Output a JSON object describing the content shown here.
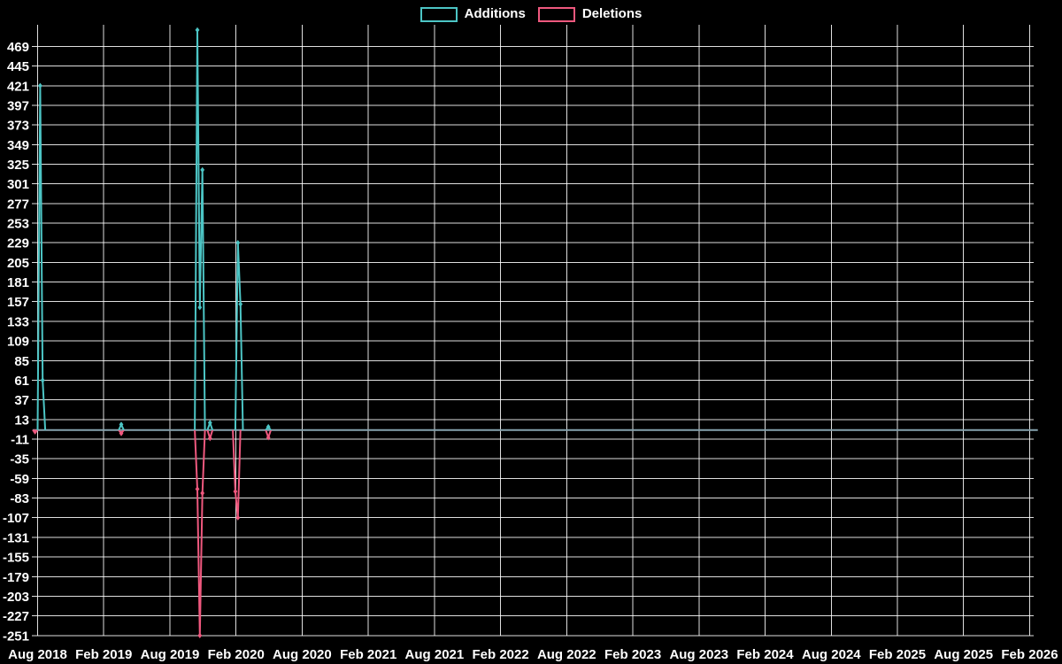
{
  "legend": {
    "items": [
      {
        "label": "Additions",
        "color": "#4cc5c5"
      },
      {
        "label": "Deletions",
        "color": "#ef587e"
      }
    ]
  },
  "chart_data": {
    "type": "line",
    "title": "",
    "xlabel": "",
    "ylabel": "",
    "legend_position": "top",
    "grid": "on",
    "background_color": "#000000",
    "grid_color": "rgba(255,255,255,0.87)",
    "tick_text_color": "#ffffff",
    "baseline_color": "#86a3ae",
    "x_ticks": [
      "Aug 2018",
      "Feb 2019",
      "Aug 2019",
      "Feb 2020",
      "Aug 2020",
      "Feb 2021",
      "Aug 2021",
      "Feb 2022",
      "Aug 2022",
      "Feb 2023",
      "Aug 2023",
      "Feb 2024",
      "Aug 2024",
      "Feb 2025",
      "Aug 2025",
      "Feb 2026"
    ],
    "y_ticks": [
      469,
      445,
      421,
      397,
      373,
      349,
      325,
      301,
      277,
      253,
      229,
      205,
      181,
      157,
      133,
      109,
      85,
      61,
      37,
      13,
      -11,
      -35,
      -59,
      -83,
      -107,
      -131,
      -155,
      -179,
      -203,
      -227,
      -251
    ],
    "ylim": [
      -251,
      469
    ],
    "x_domain": [
      "2018-07-18",
      "2026-02-22"
    ],
    "series": [
      {
        "name": "Additions",
        "color": "#4cc5c5",
        "baseline_value": 0,
        "clusters": [
          [
            [
              "2018-08-08",
              421
            ],
            [
              "2018-08-15",
              61
            ]
          ],
          [
            [
              "2019-03-20",
              7
            ]
          ],
          [
            [
              "2019-10-16",
              489
            ],
            [
              "2019-10-23",
              150
            ],
            [
              "2019-10-30",
              318
            ]
          ],
          [
            [
              "2019-11-20",
              9
            ]
          ],
          [
            [
              "2020-02-05",
              229
            ],
            [
              "2020-02-12",
              154
            ]
          ],
          [
            [
              "2020-04-29",
              4
            ]
          ]
        ]
      },
      {
        "name": "Deletions",
        "color": "#ef587e",
        "baseline_value": 0,
        "clusters": [
          [
            [
              "2018-07-25",
              -2
            ]
          ],
          [
            [
              "2019-03-20",
              -4
            ]
          ],
          [
            [
              "2019-10-16",
              -72
            ],
            [
              "2019-10-23",
              -251
            ],
            [
              "2019-10-30",
              -77
            ]
          ],
          [
            [
              "2019-11-20",
              -10
            ]
          ],
          [
            [
              "2020-01-29",
              -75
            ],
            [
              "2020-02-05",
              -107
            ]
          ],
          [
            [
              "2020-04-29",
              -9
            ]
          ]
        ]
      }
    ]
  }
}
